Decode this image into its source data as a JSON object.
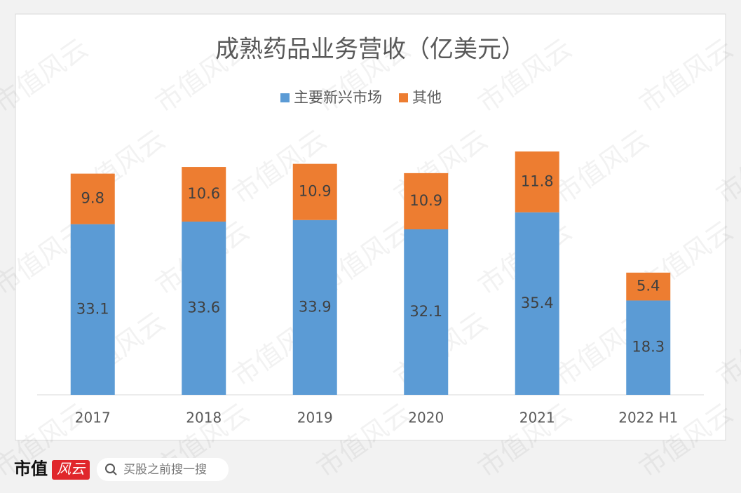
{
  "chart_data": {
    "type": "stacked_bar",
    "title": "成熟药品业务营收（亿美元）",
    "categories": [
      "2017",
      "2018",
      "2019",
      "2020",
      "2021",
      "2022 H1"
    ],
    "series": [
      {
        "name": "主要新兴市场",
        "color": "#5b9bd5",
        "values": [
          33.1,
          33.6,
          33.9,
          32.1,
          35.4,
          18.3
        ]
      },
      {
        "name": "其他",
        "color": "#ed7d31",
        "values": [
          9.8,
          10.6,
          10.9,
          10.9,
          11.8,
          5.4
        ]
      }
    ],
    "legend": "top"
  },
  "footer": {
    "brand": "市值",
    "logo": "风云",
    "search": "买股之前搜一搜"
  },
  "watermark": "市值风云"
}
